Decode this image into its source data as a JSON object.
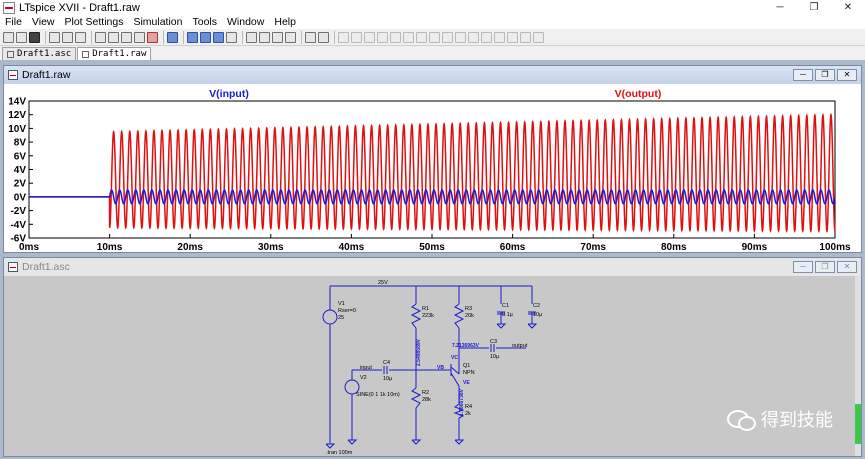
{
  "window": {
    "title": "LTspice XVII - Draft1.raw"
  },
  "menu": [
    "File",
    "View",
    "Plot Settings",
    "Simulation",
    "Tools",
    "Window",
    "Help"
  ],
  "tabs": [
    {
      "label": "Draft1.asc"
    },
    {
      "label": "Draft1.raw"
    }
  ],
  "plot_window": {
    "title": "Draft1.raw"
  },
  "schematic_window": {
    "title": "Draft1.asc"
  },
  "watermark": "得到技能",
  "colors": {
    "input_trace": "#1a1ad0",
    "output_trace": "#e01010",
    "wire": "#1a1ad0",
    "component": "#1a1ad0",
    "schematic_bg": "#c8c8c8"
  },
  "chart_data": {
    "type": "line",
    "series": [
      {
        "name": "V(input)",
        "signal": "sine",
        "amplitude": 1,
        "frequency_hz": 1000,
        "start_ms": 10,
        "stop_ms": 100,
        "offset": 0
      },
      {
        "name": "V(output)",
        "signal": "sine",
        "amplitude_start": 7,
        "amplitude_end": 8.5,
        "offset_start": 2.5,
        "offset_end": 3.5,
        "frequency_hz": 1000,
        "start_ms": 10,
        "stop_ms": 100
      }
    ],
    "xlabels": [
      "0ms",
      "10ms",
      "20ms",
      "30ms",
      "40ms",
      "50ms",
      "60ms",
      "70ms",
      "80ms",
      "90ms",
      "100ms"
    ],
    "ylabels": [
      "14V",
      "12V",
      "10V",
      "8V",
      "6V",
      "4V",
      "2V",
      "0V",
      "-2V",
      "-4V",
      "-6V"
    ],
    "xlim": [
      0,
      100
    ],
    "ylim": [
      -6,
      14
    ],
    "grid": false
  },
  "schematic": {
    "net_label_top": "25V",
    "v1": {
      "name": "V1",
      "value": "Rser=0",
      "value2": "25"
    },
    "v2": {
      "name": "V2",
      "value": "SINE(0 1 1k 10m)"
    },
    "r1": {
      "name": "R1",
      "value": "223k"
    },
    "r2": {
      "name": "R2",
      "value": "28k"
    },
    "r3": {
      "name": "R3",
      "value": "20k"
    },
    "r4": {
      "name": "R4",
      "value": "2k"
    },
    "c1": {
      "name": "C1",
      "value": "0.1µ"
    },
    "c2": {
      "name": "C2",
      "value": "10µ"
    },
    "c3": {
      "name": "C3",
      "value": "10µ"
    },
    "c4": {
      "name": "C4",
      "value": "10µ"
    },
    "q1": {
      "name": "Q1",
      "value": "NPN"
    },
    "input_label": "input",
    "output_label": "output",
    "vb_label": "VB",
    "vc_label": "VC",
    "ve_label": "VE",
    "vb_voltage": "2.5498589V",
    "vc_voltage": "7.2136963V",
    "ve_voltage": "1.7866738V",
    "directive": ".tran 100m"
  }
}
